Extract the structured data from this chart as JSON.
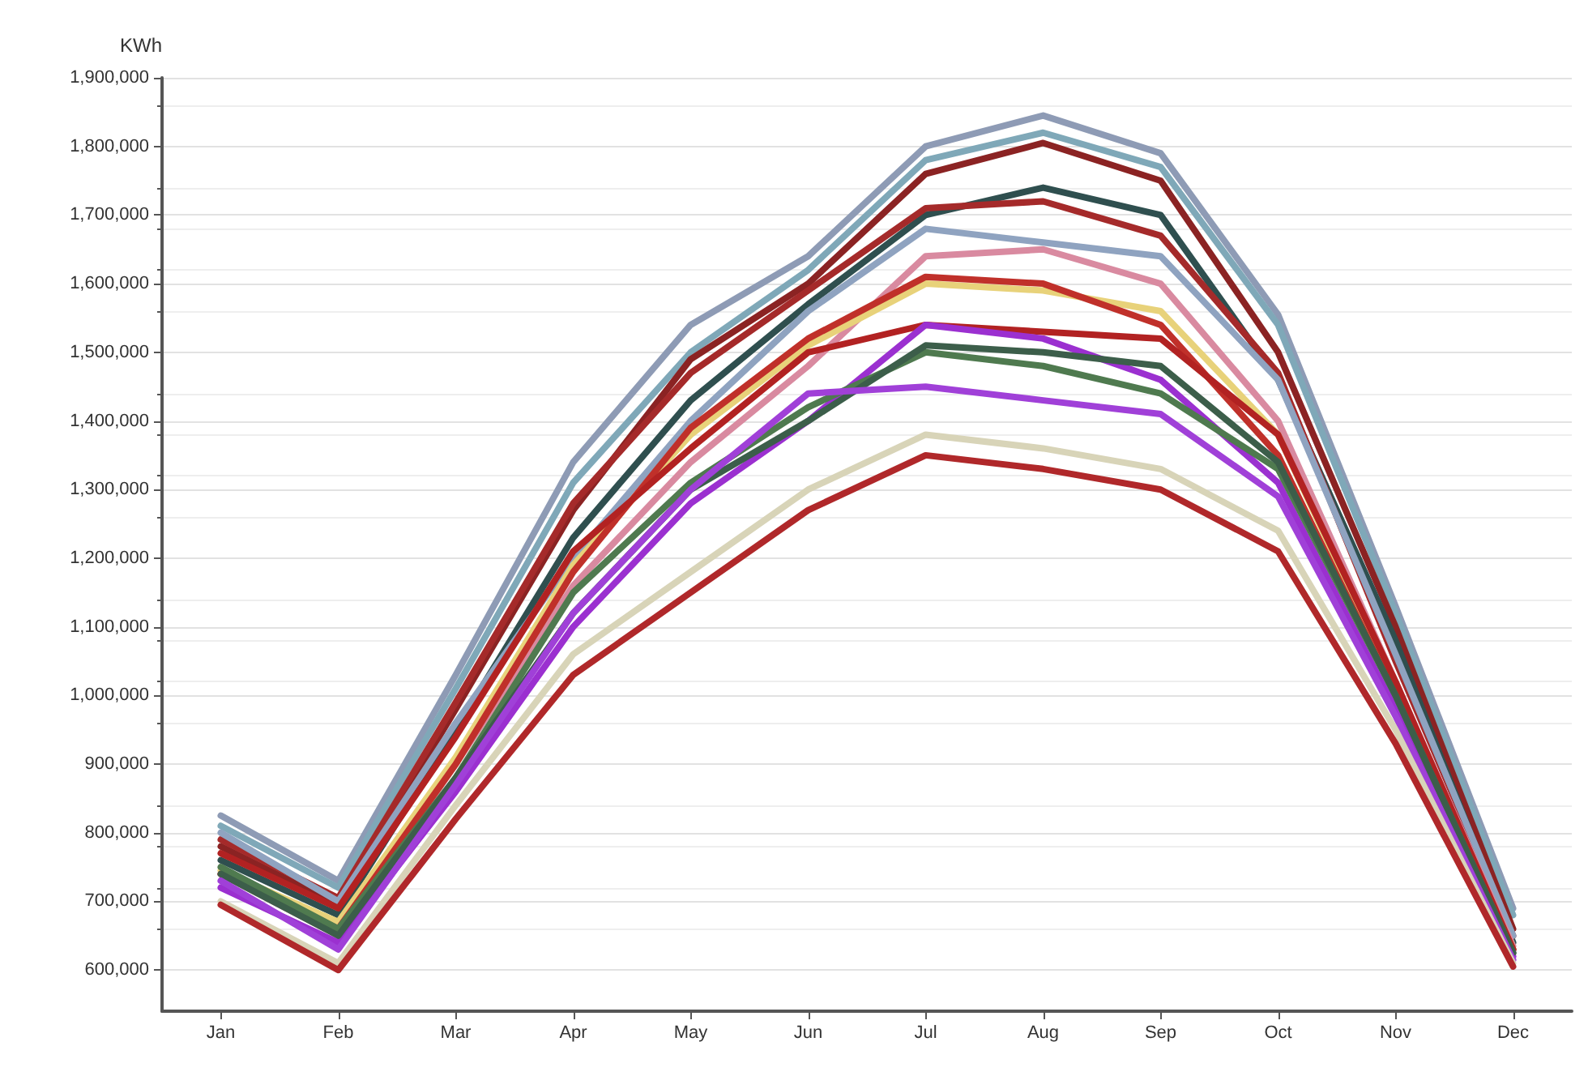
{
  "chart_data": {
    "type": "line",
    "ylabel": "KWh",
    "categories": [
      "Jan",
      "Feb",
      "Mar",
      "Apr",
      "May",
      "Jun",
      "Jul",
      "Aug",
      "Sep",
      "Oct",
      "Nov",
      "Dec"
    ],
    "series": [
      {
        "color": "#8e9bb5",
        "values": [
          825000,
          730000,
          1030000,
          1340000,
          1540000,
          1640000,
          1800000,
          1845000,
          1790000,
          1555000,
          1130000,
          690000
        ]
      },
      {
        "color": "#7fa8b8",
        "values": [
          810000,
          720000,
          1010000,
          1310000,
          1500000,
          1620000,
          1780000,
          1820000,
          1770000,
          1540000,
          1120000,
          680000
        ]
      },
      {
        "color": "#8b2323",
        "values": [
          780000,
          695000,
          980000,
          1270000,
          1490000,
          1600000,
          1760000,
          1805000,
          1750000,
          1500000,
          1100000,
          660000
        ]
      },
      {
        "color": "#2f4f4f",
        "values": [
          760000,
          680000,
          950000,
          1230000,
          1430000,
          1570000,
          1700000,
          1740000,
          1700000,
          1460000,
          1080000,
          640000
        ]
      },
      {
        "color": "#a52a2a",
        "values": [
          790000,
          705000,
          990000,
          1280000,
          1470000,
          1590000,
          1710000,
          1720000,
          1670000,
          1470000,
          1050000,
          650000
        ]
      },
      {
        "color": "#8fa3c0",
        "values": [
          800000,
          700000,
          960000,
          1200000,
          1400000,
          1560000,
          1680000,
          1660000,
          1640000,
          1460000,
          1060000,
          650000
        ]
      },
      {
        "color": "#d98aa0",
        "values": [
          740000,
          650000,
          900000,
          1160000,
          1340000,
          1480000,
          1640000,
          1650000,
          1600000,
          1400000,
          1020000,
          635000
        ]
      },
      {
        "color": "#e8d27a",
        "values": [
          745000,
          670000,
          910000,
          1190000,
          1380000,
          1510000,
          1600000,
          1590000,
          1560000,
          1380000,
          1010000,
          630000
        ]
      },
      {
        "color": "#c0302a",
        "values": [
          740000,
          660000,
          900000,
          1180000,
          1390000,
          1520000,
          1610000,
          1600000,
          1540000,
          1350000,
          1000000,
          630000
        ]
      },
      {
        "color": "#b22222",
        "values": [
          770000,
          690000,
          940000,
          1210000,
          1360000,
          1500000,
          1540000,
          1530000,
          1520000,
          1380000,
          1020000,
          630000
        ]
      },
      {
        "color": "#9b30d0",
        "values": [
          720000,
          640000,
          860000,
          1100000,
          1280000,
          1400000,
          1540000,
          1520000,
          1460000,
          1310000,
          980000,
          620000
        ]
      },
      {
        "color": "#4f7a4f",
        "values": [
          750000,
          660000,
          880000,
          1150000,
          1310000,
          1420000,
          1500000,
          1480000,
          1440000,
          1330000,
          1000000,
          625000
        ]
      },
      {
        "color": "#3c5e4a",
        "values": [
          740000,
          650000,
          880000,
          1120000,
          1300000,
          1400000,
          1510000,
          1500000,
          1480000,
          1340000,
          1000000,
          625000
        ]
      },
      {
        "color": "#a040d8",
        "values": [
          730000,
          630000,
          870000,
          1120000,
          1300000,
          1440000,
          1450000,
          1430000,
          1410000,
          1290000,
          970000,
          615000
        ]
      },
      {
        "color": "#d8d4b8",
        "values": [
          700000,
          610000,
          840000,
          1060000,
          1180000,
          1300000,
          1380000,
          1360000,
          1330000,
          1240000,
          950000,
          610000
        ]
      },
      {
        "color": "#b0282a",
        "values": [
          695000,
          600000,
          820000,
          1030000,
          1150000,
          1270000,
          1350000,
          1330000,
          1300000,
          1210000,
          930000,
          605000
        ]
      }
    ],
    "ylim": [
      540000,
      1900000
    ],
    "yticks": [
      {
        "value": 600000,
        "label": "600,000"
      },
      {
        "value": 700000,
        "label": "700,000"
      },
      {
        "value": 800000,
        "label": "800,000"
      },
      {
        "value": 900000,
        "label": "900,000"
      },
      {
        "value": 1000000,
        "label": "1,000,000"
      },
      {
        "value": 1100000,
        "label": "1,100,000"
      },
      {
        "value": 1200000,
        "label": "1,200,000"
      },
      {
        "value": 1300000,
        "label": "1,300,000"
      },
      {
        "value": 1400000,
        "label": "1,400,000"
      },
      {
        "value": 1500000,
        "label": "1,500,000"
      },
      {
        "value": 1600000,
        "label": "1,600,000"
      },
      {
        "value": 1700000,
        "label": "1,700,000"
      },
      {
        "value": 1800000,
        "label": "1,800,000"
      },
      {
        "value": 1900000,
        "label": "1,900,000"
      }
    ],
    "grid": "y",
    "marker": "none",
    "line_style": "solid"
  }
}
